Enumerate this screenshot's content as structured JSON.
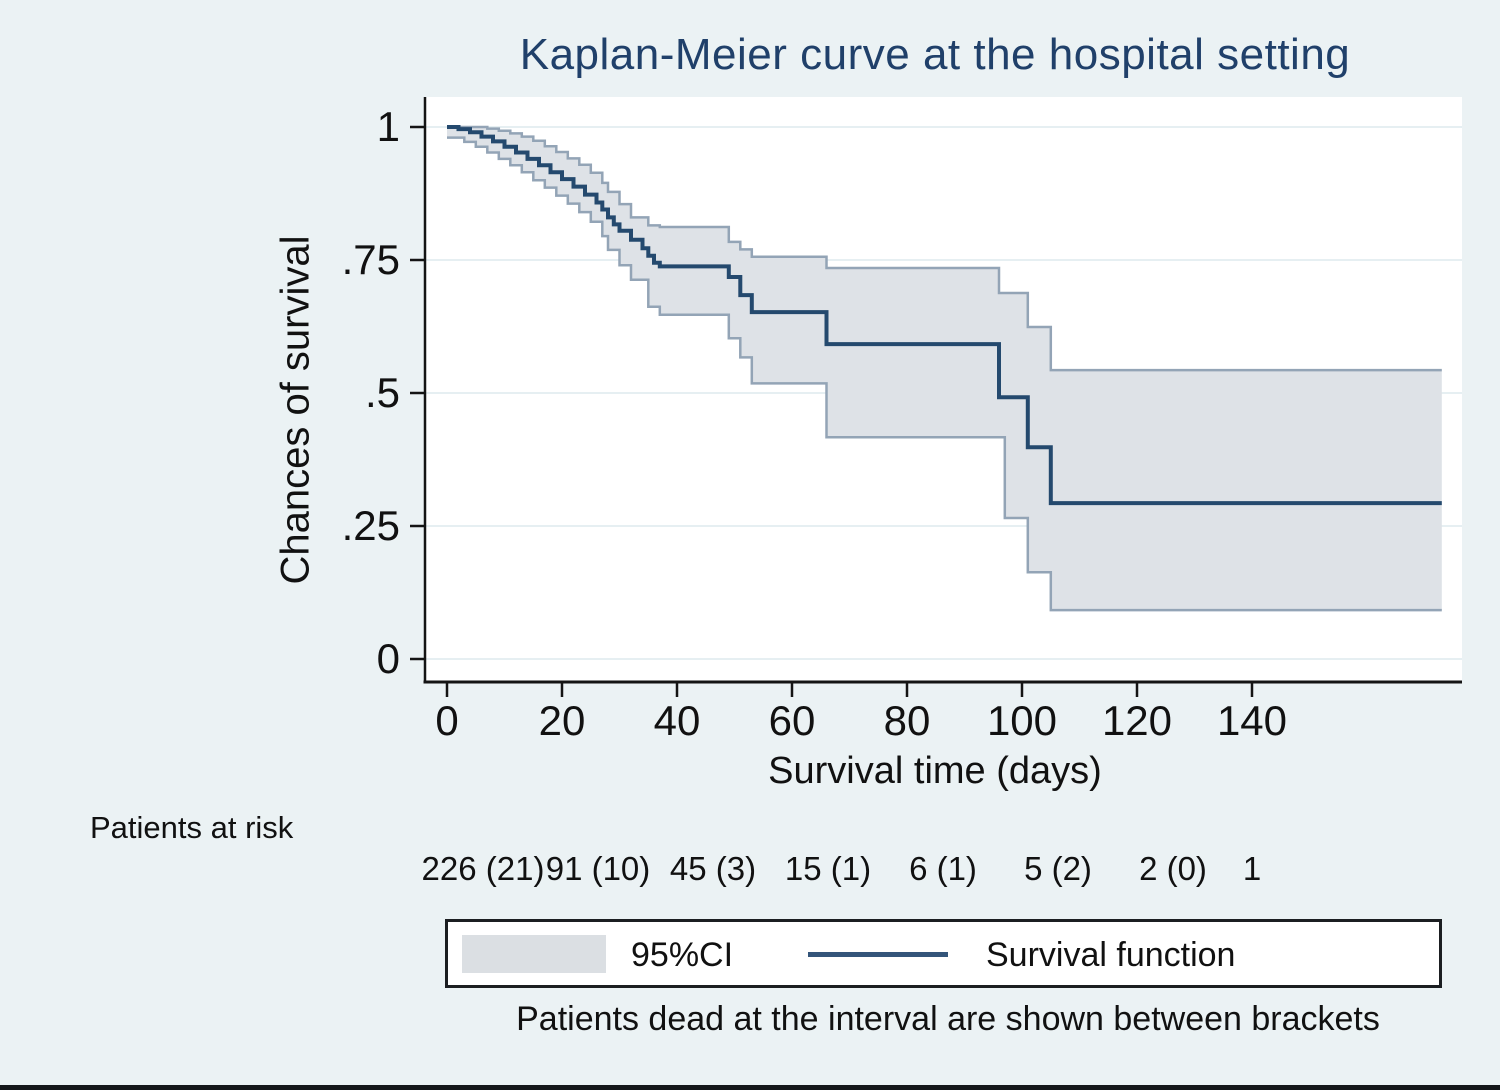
{
  "page": {
    "background_color": "#EBF2F4",
    "plot_background_color": "#FFFFFF",
    "gridline_color": "#E6EFF2",
    "axis_color": "#141414"
  },
  "chart_data": {
    "type": "line",
    "subtype": "kaplan-meier-step",
    "title": "Kaplan-Meier curve at the hospital setting",
    "title_color": "#20406A",
    "xlabel": "Survival time (days)",
    "ylabel": "Chances of survival",
    "xlim": [
      0,
      176
    ],
    "ylim": [
      0,
      1
    ],
    "grid": "horizontal",
    "x_ticks": [
      {
        "value": 0,
        "label": "0"
      },
      {
        "value": 20,
        "label": "20"
      },
      {
        "value": 40,
        "label": "40"
      },
      {
        "value": 60,
        "label": "60"
      },
      {
        "value": 80,
        "label": "80"
      },
      {
        "value": 100,
        "label": "100"
      },
      {
        "value": 120,
        "label": "120"
      },
      {
        "value": 140,
        "label": "140"
      }
    ],
    "y_ticks": [
      {
        "value": 0,
        "label": "0"
      },
      {
        "value": 0.25,
        "label": ".25"
      },
      {
        "value": 0.5,
        "label": ".5"
      },
      {
        "value": 0.75,
        "label": ".75"
      },
      {
        "value": 1,
        "label": "1"
      }
    ],
    "series": [
      {
        "name": "Survival function",
        "color": "#24496E",
        "line_width": 4,
        "steps": [
          [
            0,
            1.0
          ],
          [
            2,
            0.996
          ],
          [
            4,
            0.99
          ],
          [
            6,
            0.982
          ],
          [
            8,
            0.973
          ],
          [
            10,
            0.963
          ],
          [
            12,
            0.952
          ],
          [
            14,
            0.94
          ],
          [
            16,
            0.928
          ],
          [
            18,
            0.915
          ],
          [
            20,
            0.902
          ],
          [
            22,
            0.888
          ],
          [
            24,
            0.873
          ],
          [
            26,
            0.858
          ],
          [
            27,
            0.845
          ],
          [
            28,
            0.83
          ],
          [
            29,
            0.817
          ],
          [
            30,
            0.805
          ],
          [
            32,
            0.788
          ],
          [
            34,
            0.772
          ],
          [
            35,
            0.758
          ],
          [
            36,
            0.745
          ],
          [
            37,
            0.738
          ],
          [
            49,
            0.718
          ],
          [
            51,
            0.684
          ],
          [
            53,
            0.652
          ],
          [
            66,
            0.592
          ],
          [
            96,
            0.492
          ],
          [
            101,
            0.398
          ],
          [
            105,
            0.293
          ],
          [
            173,
            0.293
          ]
        ]
      },
      {
        "name": "95%CI upper bound",
        "color": "#93A4B6",
        "line_width": 2.5,
        "steps": [
          [
            0,
            1.0
          ],
          [
            7,
            0.997
          ],
          [
            9,
            0.993
          ],
          [
            11,
            0.988
          ],
          [
            13,
            0.982
          ],
          [
            15,
            0.974
          ],
          [
            17,
            0.964
          ],
          [
            19,
            0.953
          ],
          [
            21,
            0.941
          ],
          [
            23,
            0.929
          ],
          [
            25,
            0.914
          ],
          [
            27,
            0.895
          ],
          [
            28,
            0.878
          ],
          [
            30,
            0.855
          ],
          [
            32,
            0.83
          ],
          [
            35,
            0.815
          ],
          [
            37,
            0.812
          ],
          [
            49,
            0.784
          ],
          [
            51,
            0.77
          ],
          [
            53,
            0.756
          ],
          [
            66,
            0.735
          ],
          [
            96,
            0.688
          ],
          [
            101,
            0.624
          ],
          [
            105,
            0.543
          ],
          [
            173,
            0.543
          ]
        ]
      },
      {
        "name": "95%CI lower bound",
        "color": "#93A4B6",
        "line_width": 2.5,
        "steps": [
          [
            0,
            0.98
          ],
          [
            3,
            0.972
          ],
          [
            5,
            0.963
          ],
          [
            7,
            0.952
          ],
          [
            9,
            0.94
          ],
          [
            11,
            0.928
          ],
          [
            13,
            0.915
          ],
          [
            15,
            0.9
          ],
          [
            17,
            0.886
          ],
          [
            19,
            0.871
          ],
          [
            21,
            0.856
          ],
          [
            23,
            0.84
          ],
          [
            25,
            0.822
          ],
          [
            27,
            0.795
          ],
          [
            28,
            0.769
          ],
          [
            30,
            0.74
          ],
          [
            32,
            0.713
          ],
          [
            35,
            0.662
          ],
          [
            37,
            0.647
          ],
          [
            49,
            0.603
          ],
          [
            51,
            0.567
          ],
          [
            53,
            0.518
          ],
          [
            66,
            0.417
          ],
          [
            97,
            0.265
          ],
          [
            101,
            0.163
          ],
          [
            105,
            0.092
          ],
          [
            173,
            0.092
          ]
        ]
      }
    ],
    "ci_band": {
      "fill_color": "#DEE2E7",
      "label": "95%CI"
    },
    "at_risk": {
      "header": "Patients at risk",
      "days": [
        0,
        20,
        40,
        60,
        80,
        100,
        120,
        140
      ],
      "labels": [
        "226 (21)",
        "91 (10)",
        "45 (3)",
        "15 (1)",
        "6 (1)",
        "5 (2)",
        "2 (0)",
        "1"
      ]
    },
    "legend": {
      "position": "bottom",
      "ci_label": "95%CI",
      "line_label": "Survival function"
    },
    "footnote": "Patients dead at the interval are shown between brackets"
  }
}
